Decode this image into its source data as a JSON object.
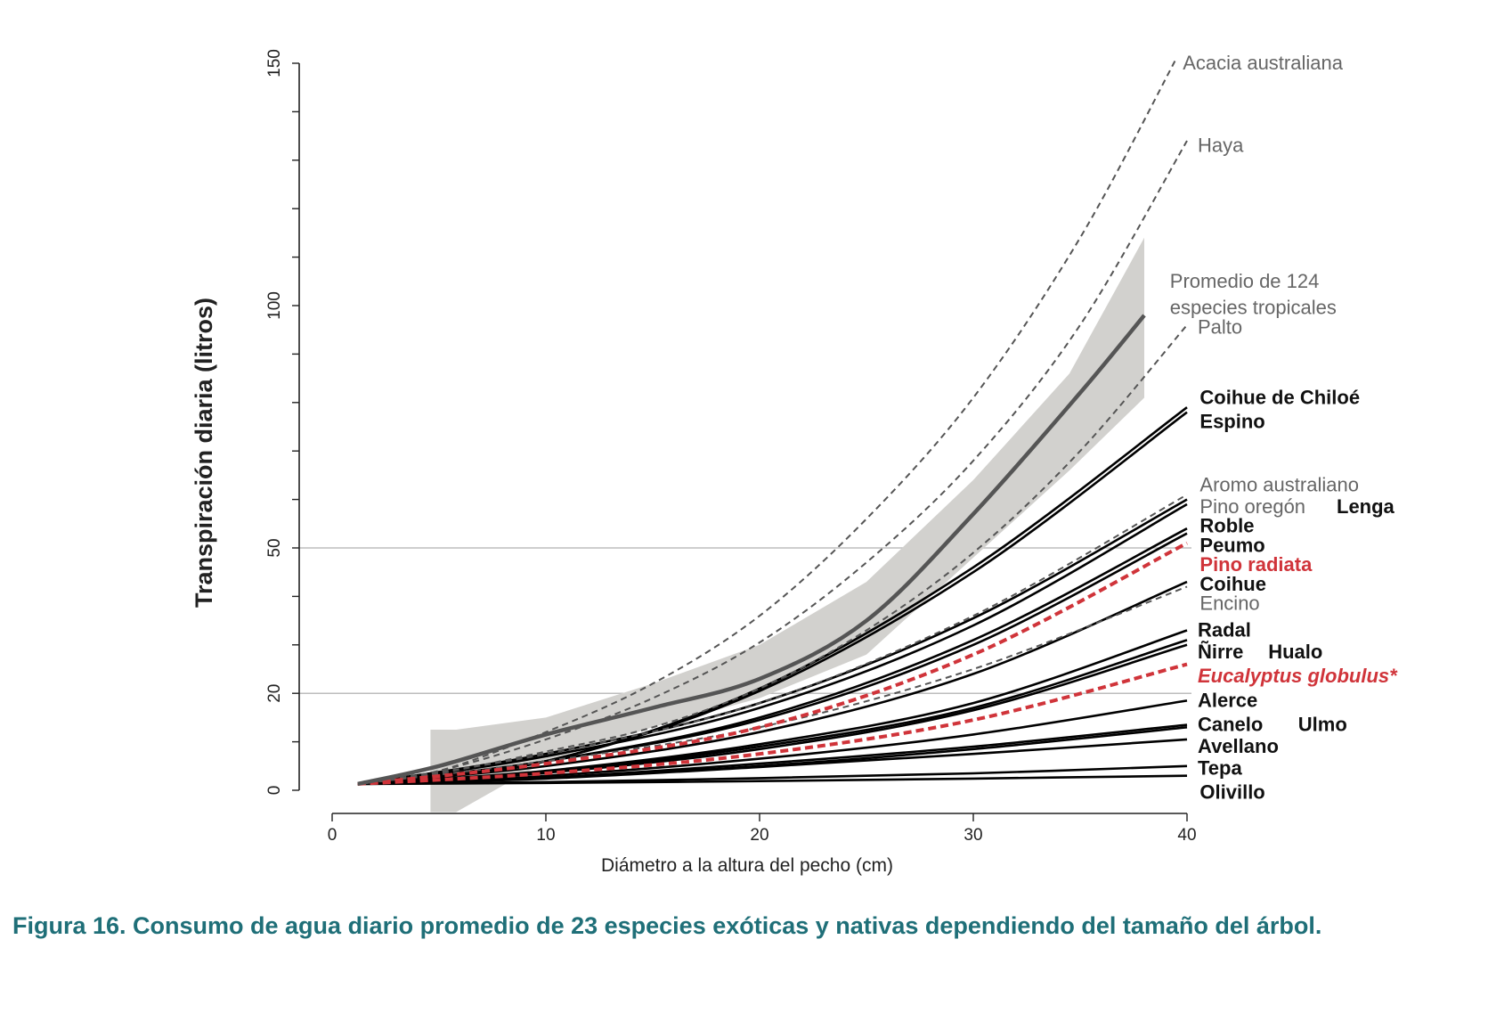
{
  "caption": "Figura 16. Consumo de agua diario promedio de 23 especies exóticas y nativas dependiendo del tamaño del árbol.",
  "colors": {
    "native": "#000000",
    "exotic_dashed": "#555555",
    "pino_radiata": "#d0343a",
    "tropical_mean": "#555555",
    "tropical_band": "#d2d1ce",
    "caption": "#1f6f78"
  },
  "chart_data": {
    "type": "line",
    "xlabel": "Diámetro a la altura del pecho (cm)",
    "ylabel": "Transpiración diaria (litros)",
    "xlim": [
      0,
      40
    ],
    "ylim": [
      0,
      150
    ],
    "xticks": [
      0,
      10,
      20,
      30,
      40
    ],
    "yticks": [
      0,
      20,
      50,
      100,
      150
    ],
    "y_minor_ticks": [
      10,
      30,
      40,
      60,
      70,
      80,
      90,
      110,
      120,
      130,
      140
    ],
    "reference_lines_y": [
      20,
      50
    ],
    "grid": false,
    "series": [
      {
        "name": "Acacia australiana",
        "style": "dashed",
        "group": "exotic",
        "x": [
          1.2,
          5,
          10,
          15,
          20,
          25,
          30,
          35,
          39.5
        ],
        "y": [
          1.3,
          4,
          12,
          22,
          36,
          56,
          81,
          114,
          151
        ]
      },
      {
        "name": "Haya",
        "style": "dashed",
        "group": "exotic",
        "x": [
          1.2,
          5,
          10,
          15,
          20,
          25,
          30,
          35,
          40
        ],
        "y": [
          1.3,
          4,
          10.5,
          19,
          30.5,
          47,
          68,
          96,
          134
        ]
      },
      {
        "name": "Palto",
        "style": "dashed",
        "group": "exotic",
        "x": [
          1.2,
          5,
          10,
          15,
          20,
          25,
          30,
          35,
          40
        ],
        "y": [
          1.3,
          3.5,
          8,
          13,
          21,
          33,
          49,
          70,
          96
        ]
      },
      {
        "name": "Aromo australiano",
        "style": "dashed",
        "group": "exotic",
        "x": [
          1.2,
          10,
          20,
          30,
          40
        ],
        "y": [
          1.3,
          7.5,
          18,
          36,
          61
        ]
      },
      {
        "name": "Encino",
        "style": "dashed",
        "group": "exotic",
        "x": [
          1.2,
          10,
          20,
          30,
          40
        ],
        "y": [
          1.3,
          6,
          13,
          25,
          42
        ]
      },
      {
        "name": "Pino radiata",
        "style": "dashed-red",
        "group": "exotic-highlight",
        "x": [
          1.2,
          10,
          20,
          30,
          40
        ],
        "y": [
          1.3,
          5.5,
          13,
          28,
          51
        ]
      },
      {
        "name": "Eucalyptus globulus*",
        "style": "dashed-red",
        "group": "exotic-highlight",
        "x": [
          1.2,
          10,
          20,
          30,
          40
        ],
        "y": [
          1.3,
          3.5,
          7.5,
          14.5,
          26
        ]
      },
      {
        "name": "Coihue de Chiloé",
        "style": "solid",
        "group": "native",
        "x": [
          1.2,
          10,
          20,
          30,
          40
        ],
        "y": [
          1.3,
          6,
          21,
          46,
          79
        ]
      },
      {
        "name": "Espino",
        "style": "solid",
        "group": "native",
        "x": [
          1.2,
          10,
          20,
          30,
          40
        ],
        "y": [
          1.3,
          6,
          20.5,
          45,
          78
        ]
      },
      {
        "name": "Pino oregón",
        "style": "solid",
        "group": "native",
        "x": [
          1.2,
          10,
          20,
          30,
          40
        ],
        "y": [
          1.3,
          7.5,
          18,
          35.5,
          60
        ]
      },
      {
        "name": "Lenga",
        "style": "solid",
        "group": "native",
        "x": [
          1.2,
          10,
          20,
          30,
          40
        ],
        "y": [
          1.3,
          7,
          17,
          34,
          59
        ]
      },
      {
        "name": "Roble",
        "style": "solid",
        "group": "native",
        "x": [
          1.2,
          10,
          20,
          30,
          40
        ],
        "y": [
          1.3,
          6,
          15,
          31,
          54
        ]
      },
      {
        "name": "Peumo",
        "style": "solid",
        "group": "native",
        "x": [
          1.2,
          10,
          20,
          30,
          40
        ],
        "y": [
          1.3,
          6,
          14.5,
          30,
          53
        ]
      },
      {
        "name": "Coihue",
        "style": "solid",
        "group": "native",
        "x": [
          1.2,
          10,
          20,
          30,
          40
        ],
        "y": [
          1.3,
          5,
          12,
          24,
          43
        ]
      },
      {
        "name": "Radal",
        "style": "solid",
        "group": "native",
        "x": [
          1.2,
          10,
          20,
          30,
          40
        ],
        "y": [
          1.3,
          4,
          9.5,
          18,
          33
        ]
      },
      {
        "name": "Ñirre",
        "style": "solid",
        "group": "native",
        "x": [
          1.2,
          10,
          20,
          30,
          40
        ],
        "y": [
          1.3,
          3.8,
          9,
          17,
          31
        ]
      },
      {
        "name": "Hualo",
        "style": "solid",
        "group": "native",
        "x": [
          1.2,
          10,
          20,
          30,
          40
        ],
        "y": [
          1.3,
          3.6,
          8.5,
          16.5,
          30
        ]
      },
      {
        "name": "Alerce",
        "style": "solid",
        "group": "native",
        "x": [
          1.2,
          10,
          20,
          30,
          40
        ],
        "y": [
          1.3,
          3,
          6.5,
          11.5,
          18.5
        ]
      },
      {
        "name": "Canelo",
        "style": "solid",
        "group": "native",
        "x": [
          1.2,
          10,
          20,
          30,
          40
        ],
        "y": [
          1.3,
          2.6,
          5.5,
          9,
          13.5
        ]
      },
      {
        "name": "Ulmo",
        "style": "solid",
        "group": "native",
        "x": [
          1.2,
          10,
          20,
          30,
          40
        ],
        "y": [
          1.3,
          2.5,
          5,
          8.5,
          13
        ]
      },
      {
        "name": "Avellano",
        "style": "solid",
        "group": "native",
        "x": [
          1.2,
          10,
          20,
          30,
          40
        ],
        "y": [
          1.3,
          2.4,
          4.8,
          7.5,
          10.5
        ]
      },
      {
        "name": "Tepa",
        "style": "solid",
        "group": "native",
        "x": [
          1.2,
          10,
          20,
          30,
          40
        ],
        "y": [
          1.3,
          1.7,
          2.5,
          3.5,
          5
        ]
      },
      {
        "name": "Olivillo",
        "style": "solid",
        "group": "native",
        "x": [
          1.2,
          10,
          20,
          30,
          40
        ],
        "y": [
          1.3,
          1.5,
          1.9,
          2.4,
          3
        ]
      }
    ],
    "tropical_mean": {
      "name": "Promedio de 124 especies tropicales",
      "x": [
        1.2,
        5,
        10,
        15,
        20,
        25,
        30,
        35,
        38
      ],
      "y": [
        1.3,
        5,
        11.5,
        17,
        23,
        35,
        57,
        82,
        98
      ],
      "band_x": [
        4.6,
        5.8,
        10,
        15,
        20,
        25,
        30,
        34.5,
        38
      ],
      "band_upper": [
        12.5,
        12.5,
        15,
        22,
        30,
        43,
        64,
        86,
        114
      ],
      "band_lower": [
        -4.5,
        -4.5,
        6,
        13,
        19,
        28,
        48,
        66,
        81
      ]
    },
    "labels": [
      {
        "text": "Acacia australiana",
        "x": 39.8,
        "y": 150,
        "style": "grey"
      },
      {
        "text": "Haya",
        "x": 40.5,
        "y": 133,
        "style": "grey"
      },
      {
        "text": "Promedio de 124",
        "x": 39.2,
        "y": 105,
        "style": "grey"
      },
      {
        "text": "especies tropicales",
        "x": 39.2,
        "y": 99.5,
        "style": "grey"
      },
      {
        "text": "Palto",
        "x": 40.5,
        "y": 95.5,
        "style": "grey"
      },
      {
        "text": "Coihue de Chiloé",
        "x": 40.6,
        "y": 81,
        "style": "bold"
      },
      {
        "text": "Espino",
        "x": 40.6,
        "y": 76,
        "style": "bold"
      },
      {
        "text": "Aromo australiano",
        "x": 40.6,
        "y": 63,
        "style": "grey"
      },
      {
        "text": "Pino oregón",
        "x": 40.6,
        "y": 58.5,
        "style": "grey"
      },
      {
        "text": "Lenga",
        "x": 47,
        "y": 58.5,
        "style": "bold"
      },
      {
        "text": "Roble",
        "x": 40.6,
        "y": 54.5,
        "style": "bold"
      },
      {
        "text": "Peumo",
        "x": 40.6,
        "y": 50.5,
        "style": "bold"
      },
      {
        "text": "Pino radiata",
        "x": 40.6,
        "y": 46.5,
        "style": "red"
      },
      {
        "text": "Coihue",
        "x": 40.6,
        "y": 42.5,
        "style": "bold"
      },
      {
        "text": "Encino",
        "x": 40.6,
        "y": 38.5,
        "style": "grey"
      },
      {
        "text": "Radal",
        "x": 40.5,
        "y": 33,
        "style": "bold"
      },
      {
        "text": "Ñirre",
        "x": 40.5,
        "y": 28.5,
        "style": "bold"
      },
      {
        "text": "Hualo",
        "x": 43.8,
        "y": 28.5,
        "style": "bold"
      },
      {
        "text": "Eucalyptus globulus*",
        "x": 40.5,
        "y": 23.5,
        "style": "red-italic"
      },
      {
        "text": "Alerce",
        "x": 40.5,
        "y": 18.5,
        "style": "bold"
      },
      {
        "text": "Canelo",
        "x": 40.5,
        "y": 13.5,
        "style": "bold"
      },
      {
        "text": "Ulmo",
        "x": 45.2,
        "y": 13.5,
        "style": "bold"
      },
      {
        "text": "Avellano",
        "x": 40.5,
        "y": 9,
        "style": "bold"
      },
      {
        "text": "Tepa",
        "x": 40.5,
        "y": 4.5,
        "style": "bold"
      },
      {
        "text": "Olivillo",
        "x": 40.6,
        "y": -0.5,
        "style": "bold"
      }
    ]
  }
}
